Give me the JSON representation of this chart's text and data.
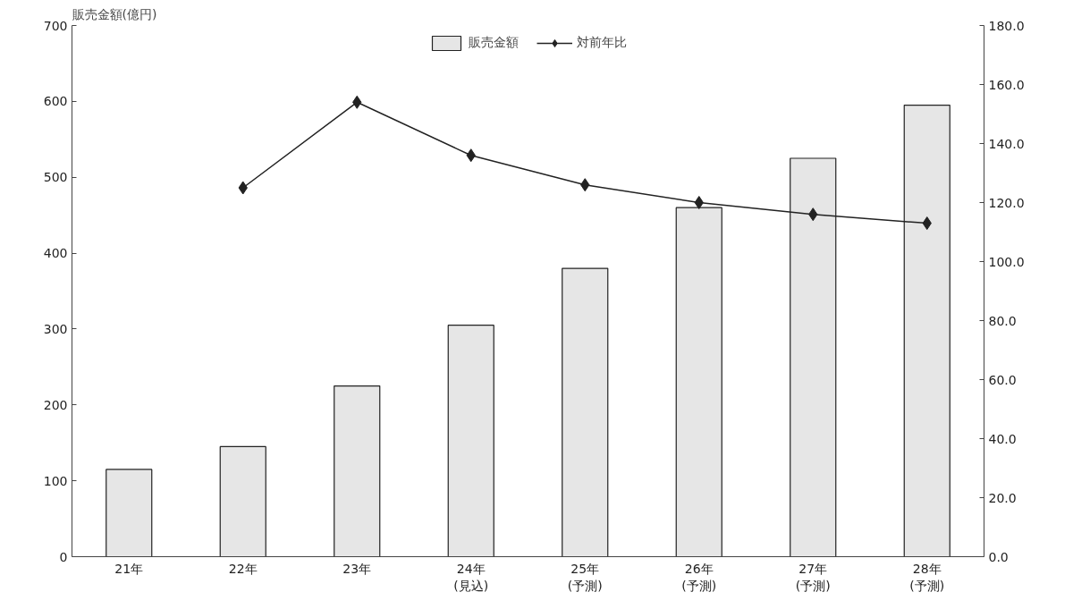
{
  "chart_data": {
    "type": "bar",
    "ylabel": "販売金額(億円)",
    "categories": [
      "21年",
      "22年",
      "23年",
      "24年\n(見込)",
      "25年\n(予測)",
      "26年\n(予測)",
      "27年\n(予測)",
      "28年\n(予測)"
    ],
    "series": [
      {
        "name": "販売金額",
        "color": "#e6e6e6",
        "values": [
          115,
          145,
          225,
          305,
          380,
          460,
          525,
          595
        ]
      },
      {
        "name": "対前年比",
        "type": "line",
        "axis": "y2",
        "color": "#222222",
        "marker": "diamond",
        "values": [
          null,
          125,
          154,
          136,
          126,
          120,
          116,
          113
        ]
      }
    ],
    "ylim": [
      0,
      700
    ],
    "yticks": [
      0,
      100,
      200,
      300,
      400,
      500,
      600,
      700
    ],
    "y2lim": [
      0,
      180
    ],
    "y2ticks": [
      {
        "value": 0,
        "label": "0.0"
      },
      {
        "value": 20,
        "label": "20.0"
      },
      {
        "value": 40,
        "label": "40.0"
      },
      {
        "value": 60,
        "label": "60.0"
      },
      {
        "value": 80,
        "label": "80.0"
      },
      {
        "value": 100,
        "label": "100.0"
      },
      {
        "value": 120,
        "label": "120.0"
      },
      {
        "value": 140,
        "label": "140.0"
      },
      {
        "value": 160,
        "label": "160.0"
      },
      {
        "value": 180,
        "label": "180.0"
      }
    ],
    "legend": "top",
    "grid": false
  }
}
